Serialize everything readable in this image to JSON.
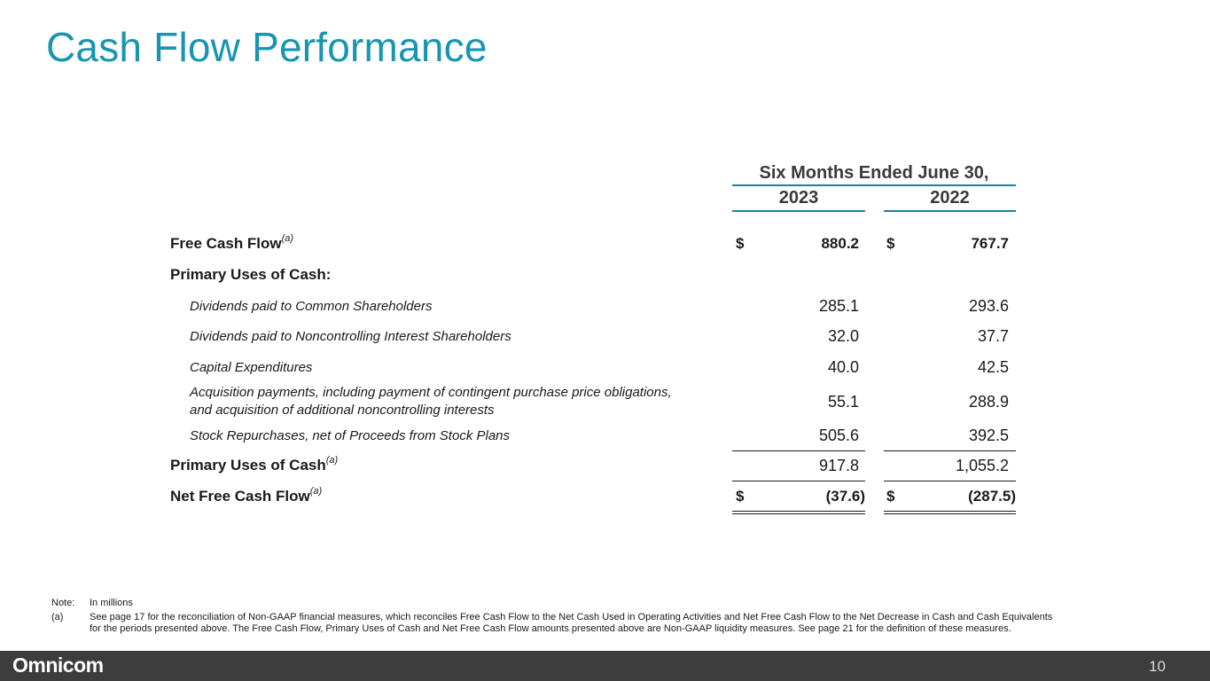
{
  "title": "Cash Flow Performance",
  "table": {
    "period_header": "Six Months Ended June 30,",
    "years": [
      "2023",
      "2022"
    ],
    "currency": "$",
    "free_cash_flow": {
      "label": "Free Cash Flow",
      "sup": "(a)",
      "v2023": "880.2",
      "v2022": "767.7"
    },
    "primary_uses_heading": "Primary Uses of Cash:",
    "items": [
      {
        "label": "Dividends paid to Common Shareholders",
        "v2023": "285.1",
        "v2022": "293.6"
      },
      {
        "label": "Dividends paid to Noncontrolling Interest Shareholders",
        "v2023": "32.0",
        "v2022": "37.7"
      },
      {
        "label": "Capital Expenditures",
        "v2023": "40.0",
        "v2022": "42.5"
      },
      {
        "label_line1": "Acquisition payments, including payment of contingent purchase price obligations,",
        "label_line2": "and acquisition of additional noncontrolling interests",
        "v2023": "55.1",
        "v2022": "288.9"
      },
      {
        "label": "Stock Repurchases, net of Proceeds from Stock Plans",
        "v2023": "505.6",
        "v2022": "392.5"
      }
    ],
    "primary_uses_total": {
      "label": "Primary Uses of Cash",
      "sup": "(a)",
      "v2023": "917.8",
      "v2022": "1,055.2"
    },
    "net_free_cash_flow": {
      "label": "Net Free Cash Flow",
      "sup": "(a)",
      "v2023": "(37.6)",
      "v2022": "(287.5)"
    }
  },
  "notes": {
    "note_label": "Note:",
    "note_text": "In millions",
    "a_label": "(a)",
    "a_line1": "See page 17 for the reconciliation of Non-GAAP financial measures, which reconciles Free Cash Flow to the Net Cash Used in Operating Activities and Net Free Cash Flow to the Net Decrease in Cash and Cash Equivalents",
    "a_line2": "for the periods presented above.  The Free Cash Flow, Primary Uses of Cash and Net Free Cash Flow amounts presented above are Non-GAAP liquidity measures. See page 21 for the definition of these measures."
  },
  "footer": {
    "logo": "Omnicom",
    "page_number": "10"
  },
  "colors": {
    "title": "#1796b0",
    "header_rule": "#1e7ea6",
    "footer_bg": "#3d3d3d"
  }
}
